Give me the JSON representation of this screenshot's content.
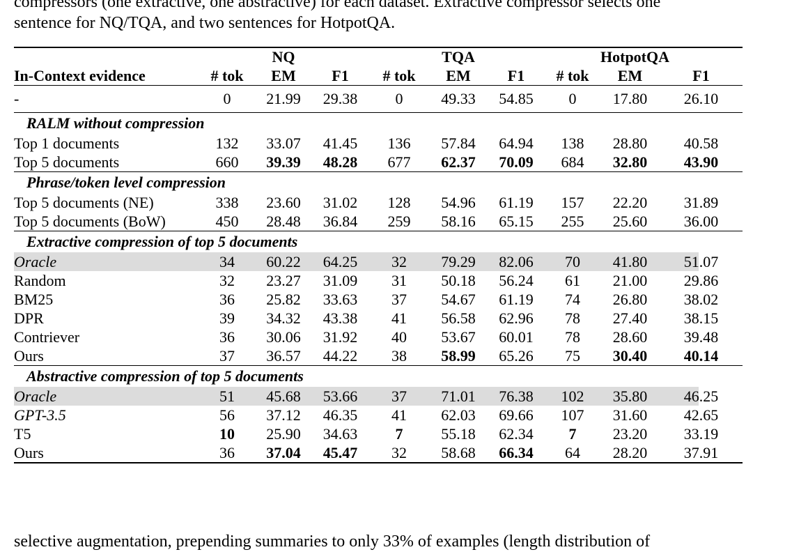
{
  "caption": {
    "line1": "compressors (one extractive, one abstractive) for each dataset. Extractive compressor selects one",
    "line2": "sentence for NQ/TQA, and two sentences for HotpotQA."
  },
  "table": {
    "header": {
      "datasets": [
        "NQ",
        "TQA",
        "HotpotQA"
      ],
      "first_col": "In-Context evidence",
      "sub": [
        "# tok",
        "EM",
        "F1"
      ]
    },
    "baseline": {
      "label": "-",
      "values": [
        "0",
        "21.99",
        "29.38",
        "0",
        "49.33",
        "54.85",
        "0",
        "17.80",
        "26.10"
      ]
    },
    "groups": [
      {
        "title": "RALM without compression",
        "rows": [
          {
            "label": "Top 1 documents",
            "values": [
              "132",
              "33.07",
              "41.45",
              "136",
              "57.84",
              "64.94",
              "138",
              "28.80",
              "40.58"
            ]
          },
          {
            "label": "Top 5 documents",
            "values": [
              "660",
              "39.39",
              "48.28",
              "677",
              "62.37",
              "70.09",
              "684",
              "32.80",
              "43.90"
            ]
          }
        ]
      },
      {
        "title": "Phrase/token level compression",
        "rows": [
          {
            "label": "Top 5 documents (NE)",
            "values": [
              "338",
              "23.60",
              "31.02",
              "128",
              "54.96",
              "61.19",
              "157",
              "22.20",
              "31.89"
            ]
          },
          {
            "label": "Top 5 documents (BoW)",
            "values": [
              "450",
              "28.48",
              "36.84",
              "259",
              "58.16",
              "65.15",
              "255",
              "25.60",
              "36.00"
            ]
          }
        ]
      },
      {
        "title": "Extractive compression of top 5 documents",
        "rows": [
          {
            "label": "Oracle",
            "values": [
              "34",
              "60.22",
              "64.25",
              "32",
              "79.29",
              "82.06",
              "70",
              "41.80",
              "51.07"
            ]
          },
          {
            "label": "Random",
            "values": [
              "32",
              "23.27",
              "31.09",
              "31",
              "50.18",
              "56.24",
              "61",
              "21.00",
              "29.86"
            ]
          },
          {
            "label": "BM25",
            "values": [
              "36",
              "25.82",
              "33.63",
              "37",
              "54.67",
              "61.19",
              "74",
              "26.80",
              "38.02"
            ]
          },
          {
            "label": "DPR",
            "values": [
              "39",
              "34.32",
              "43.38",
              "41",
              "56.58",
              "62.96",
              "78",
              "27.40",
              "38.15"
            ]
          },
          {
            "label": "Contriever",
            "values": [
              "36",
              "30.06",
              "31.92",
              "40",
              "53.67",
              "60.01",
              "78",
              "28.60",
              "39.48"
            ]
          },
          {
            "label": "Ours",
            "values": [
              "37",
              "36.57",
              "44.22",
              "38",
              "58.99",
              "65.26",
              "75",
              "30.40",
              "40.14"
            ]
          }
        ]
      },
      {
        "title": "Abstractive compression of top 5 documents",
        "rows": [
          {
            "label": "Oracle",
            "values": [
              "51",
              "45.68",
              "53.66",
              "37",
              "71.01",
              "76.38",
              "102",
              "35.80",
              "46.25"
            ]
          },
          {
            "label": "GPT-3.5",
            "values": [
              "56",
              "37.12",
              "46.35",
              "41",
              "62.03",
              "69.66",
              "107",
              "31.60",
              "42.65"
            ]
          },
          {
            "label": "T5",
            "values": [
              "10",
              "25.90",
              "34.63",
              "7",
              "55.18",
              "62.34",
              "7",
              "23.20",
              "33.19"
            ]
          },
          {
            "label": "Ours",
            "values": [
              "36",
              "37.04",
              "45.47",
              "32",
              "58.68",
              "66.34",
              "64",
              "28.20",
              "37.91"
            ]
          }
        ]
      }
    ]
  },
  "following_text": "selective augmentation, prepending summaries to only 33% of examples (length distribution of"
}
